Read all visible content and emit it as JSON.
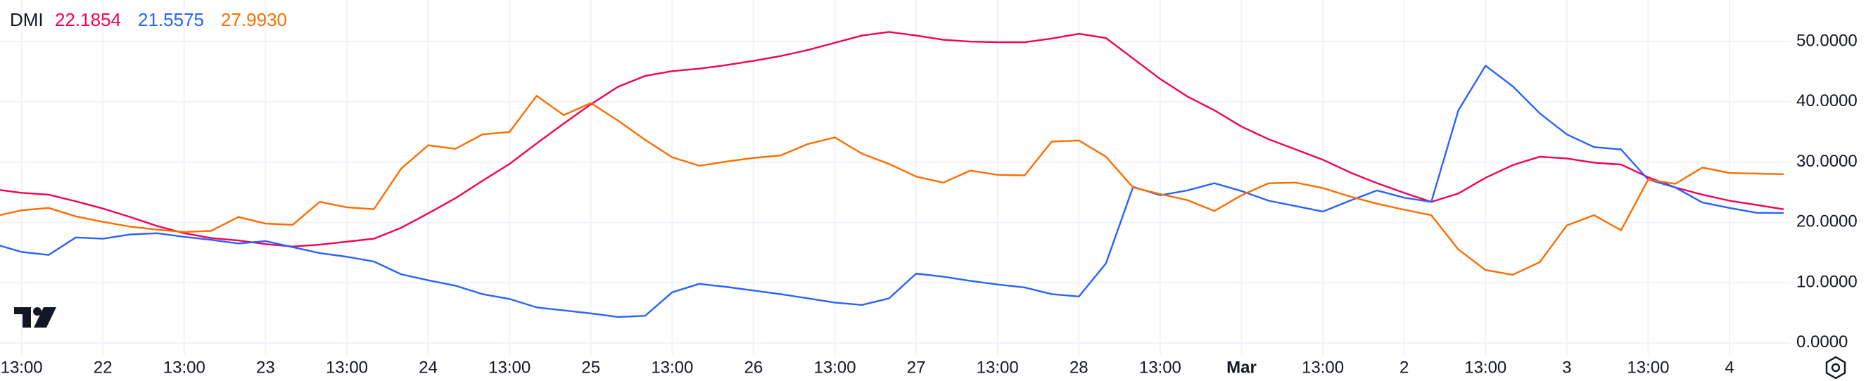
{
  "chart_data": {
    "type": "line",
    "title": "DMI",
    "legend_values": [
      "22.1854",
      "21.5575",
      "27.9930"
    ],
    "categories": [
      null,
      "13:00",
      null,
      null,
      "22",
      null,
      null,
      "13:00",
      null,
      null,
      "23",
      null,
      null,
      "13:00",
      null,
      null,
      "24",
      null,
      null,
      "13:00",
      null,
      null,
      "25",
      null,
      null,
      "13:00",
      null,
      null,
      "26",
      null,
      null,
      "13:00",
      null,
      null,
      "27",
      null,
      null,
      "13:00",
      null,
      null,
      "28",
      null,
      null,
      "13:00",
      null,
      null,
      "Mar",
      null,
      null,
      "13:00",
      null,
      null,
      "2",
      null,
      null,
      "13:00",
      null,
      null,
      "3",
      null,
      null,
      "13:00",
      null,
      null,
      "4",
      null,
      null
    ],
    "series": [
      {
        "color": "#f50057",
        "values": [
          25.5,
          24.9,
          24.6,
          23.5,
          22.3,
          20.9,
          19.4,
          18.2,
          17.4,
          17.0,
          16.4,
          16.0,
          16.3,
          16.8,
          17.3,
          19.1,
          21.5,
          24.0,
          26.9,
          29.7,
          33.1,
          36.4,
          39.6,
          42.5,
          44.3,
          45.1,
          45.5,
          46.1,
          46.8,
          47.6,
          48.6,
          49.8,
          51.0,
          51.6,
          51.0,
          50.3,
          50.0,
          49.9,
          49.9,
          50.5,
          51.3,
          50.6,
          47.2,
          43.8,
          40.9,
          38.6,
          35.9,
          33.8,
          32.1,
          30.4,
          28.3,
          26.5,
          24.9,
          23.4,
          24.8,
          27.4,
          29.5,
          30.9,
          30.6,
          29.9,
          29.6,
          27.5,
          25.8,
          24.6,
          23.6,
          22.9,
          22.1854
        ]
      },
      {
        "color": "#2962ff",
        "values": [
          16.4,
          15.1,
          14.6,
          17.5,
          17.3,
          18.0,
          18.2,
          17.6,
          17.1,
          16.5,
          16.9,
          15.9,
          14.9,
          14.3,
          13.5,
          11.4,
          10.4,
          9.5,
          8.1,
          7.3,
          5.9,
          5.4,
          4.9,
          4.3,
          4.5,
          8.4,
          9.8,
          9.3,
          8.7,
          8.1,
          7.4,
          6.7,
          6.3,
          7.4,
          11.5,
          11.0,
          10.3,
          9.7,
          9.2,
          8.1,
          7.7,
          13.2,
          25.9,
          24.5,
          25.3,
          26.5,
          25.2,
          23.6,
          22.7,
          21.8,
          23.6,
          25.3,
          24.1,
          23.4,
          38.6,
          46.0,
          42.6,
          38.1,
          34.6,
          32.5,
          32.1,
          27.1,
          25.8,
          23.3,
          22.4,
          21.6,
          21.5575
        ]
      },
      {
        "color": "#ff6d00",
        "values": [
          21.0,
          22.0,
          22.4,
          21.0,
          20.1,
          19.3,
          18.8,
          18.4,
          18.6,
          20.9,
          19.8,
          19.6,
          23.4,
          22.5,
          22.2,
          28.9,
          32.8,
          32.2,
          34.6,
          35.0,
          41.0,
          37.8,
          39.8,
          36.9,
          33.7,
          30.8,
          29.4,
          30.1,
          30.7,
          31.1,
          33.0,
          34.1,
          31.4,
          29.7,
          27.6,
          26.6,
          28.6,
          27.9,
          27.8,
          33.4,
          33.6,
          30.9,
          25.8,
          24.7,
          23.7,
          21.9,
          24.5,
          26.5,
          26.6,
          25.7,
          24.3,
          23.1,
          22.1,
          21.2,
          15.5,
          12.1,
          11.3,
          13.4,
          19.5,
          21.2,
          18.7,
          27.1,
          26.4,
          29.1,
          28.2,
          28.1,
          27.993
        ]
      }
    ],
    "ylim": [
      -2,
      56.9
    ],
    "yticks": [
      {
        "value": 0,
        "label": "0.0000"
      },
      {
        "value": 10,
        "label": "10.0000"
      },
      {
        "value": 20,
        "label": "20.0000"
      },
      {
        "value": 30,
        "label": "30.0000"
      },
      {
        "value": 40,
        "label": "40.0000"
      },
      {
        "value": 50,
        "label": "50.0000"
      }
    ],
    "grid": true
  }
}
